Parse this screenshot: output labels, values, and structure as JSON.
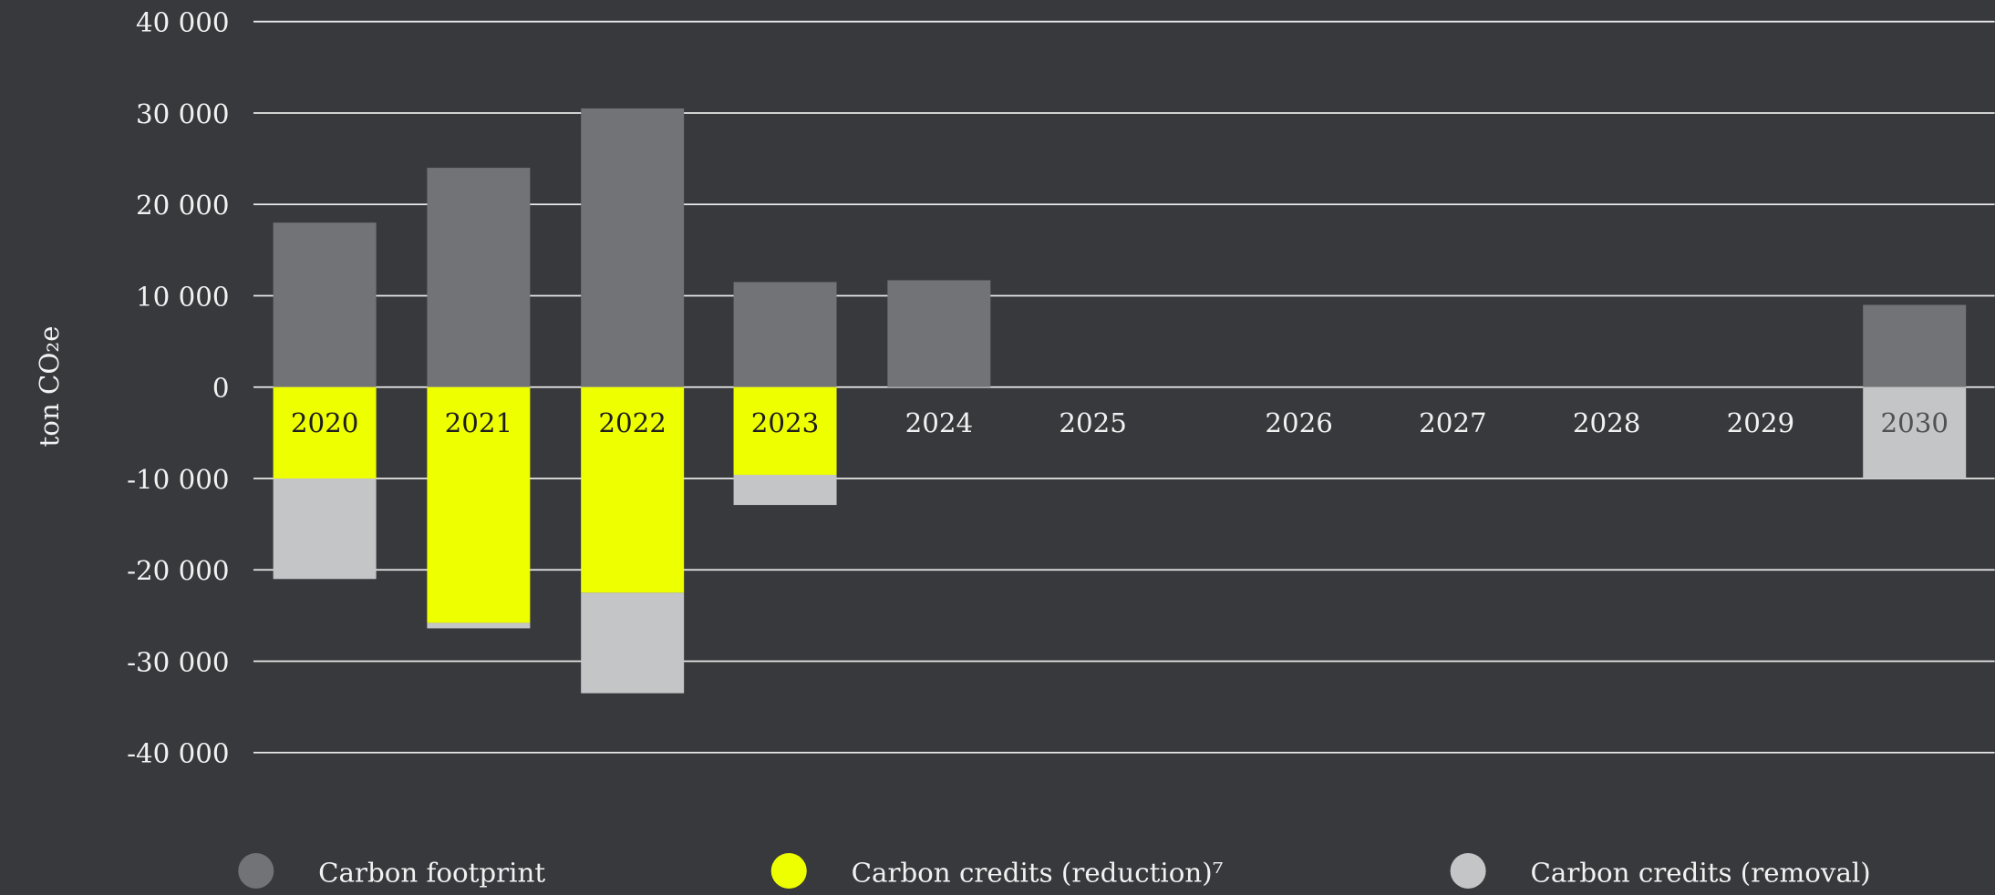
{
  "chart_data": {
    "type": "bar",
    "stacked": true,
    "ylabel": "ton CO₂e",
    "categories": [
      "2020",
      "2021",
      "2022",
      "2023",
      "2024",
      "2025",
      "2026",
      "2027",
      "2028",
      "2029",
      "2030"
    ],
    "series": [
      {
        "name": "Carbon footprint",
        "color": "#727376",
        "values": [
          18000,
          24000,
          30500,
          11500,
          11700,
          null,
          null,
          null,
          null,
          null,
          9000
        ]
      },
      {
        "name": "Carbon credits (reduction)⁷",
        "color": "#eeff00",
        "values": [
          -10000,
          -25800,
          -22500,
          -9600,
          null,
          null,
          null,
          null,
          null,
          null,
          null
        ]
      },
      {
        "name": "Carbon credits (removal)",
        "color": "#c4c5c7",
        "values": [
          -11000,
          -600,
          -11000,
          -3300,
          null,
          null,
          null,
          null,
          null,
          null,
          -10000
        ]
      }
    ],
    "ylim": [
      -40000,
      40000
    ],
    "yticks": [
      {
        "value": -40000,
        "label": "-40 000"
      },
      {
        "value": -30000,
        "label": "-30 000"
      },
      {
        "value": -20000,
        "label": "-20 000"
      },
      {
        "value": -10000,
        "label": "-10 000"
      },
      0,
      {
        "value": 10000,
        "label": "10 000"
      },
      {
        "value": 20000,
        "label": "20 000"
      },
      {
        "value": 30000,
        "label": "30 000"
      },
      {
        "value": 40000,
        "label": "40 000"
      }
    ],
    "grid": true,
    "legend": "bottom"
  }
}
